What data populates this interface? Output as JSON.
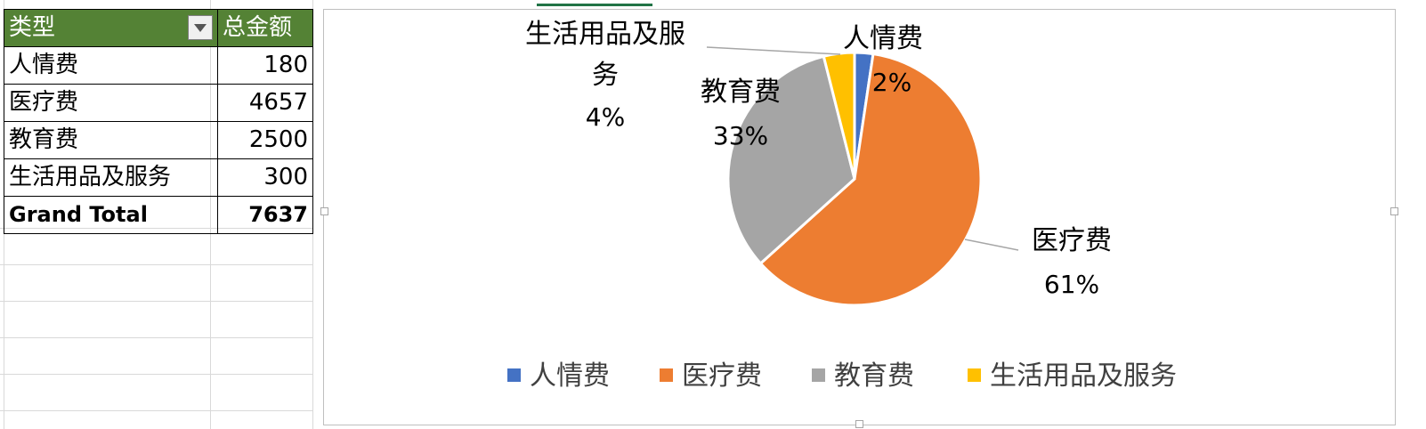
{
  "table": {
    "header": {
      "type_label": "类型",
      "total_label": "总金额"
    },
    "rows": [
      {
        "label": "人情费",
        "value": "180"
      },
      {
        "label": "医疗费",
        "value": "4657"
      },
      {
        "label": "教育费",
        "value": "2500"
      },
      {
        "label": "生活用品及服务",
        "value": "300"
      }
    ],
    "grand_total": {
      "label": "Grand Total",
      "value": "7637"
    }
  },
  "chart_data": {
    "type": "pie",
    "categories": [
      "人情费",
      "医疗费",
      "教育费",
      "生活用品及服务"
    ],
    "values": [
      180,
      4657,
      2500,
      300
    ],
    "percent_labels": [
      "2%",
      "61%",
      "33%",
      "4%"
    ],
    "colors": [
      "#4472c4",
      "#ed7d31",
      "#a5a5a5",
      "#ffc000"
    ],
    "data_labels": [
      {
        "name": "人情费",
        "pct": "2%"
      },
      {
        "name": "医疗费",
        "pct": "61%"
      },
      {
        "name": "教育费",
        "pct": "33%"
      },
      {
        "name_line1": "生活用品及服",
        "name_line2": "务",
        "pct": "4%"
      }
    ],
    "legend": {
      "position": "bottom",
      "items": [
        "人情费",
        "医疗费",
        "教育费",
        "生活用品及服务"
      ]
    }
  }
}
